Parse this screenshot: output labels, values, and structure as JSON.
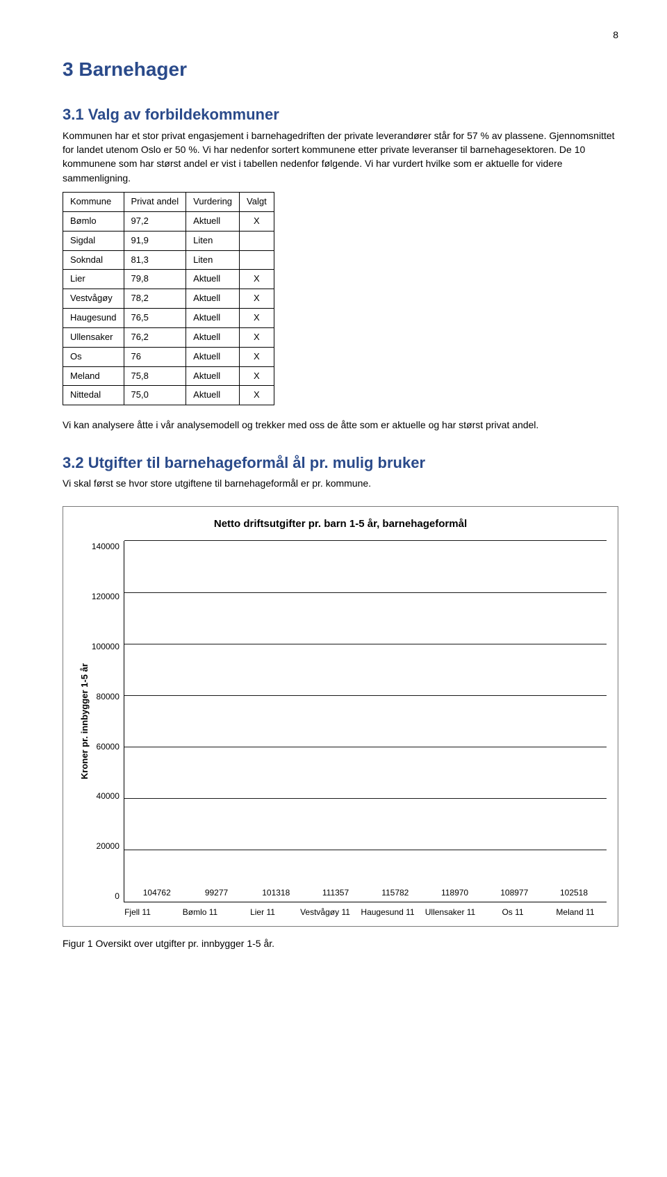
{
  "page_number": "8",
  "h1": "3  Barnehager",
  "h2_1": "3.1  Valg av forbildekommuner",
  "p1": "Kommunen har et stor privat engasjement i barnehagedriften der private leverandører står for 57 % av plassene. Gjennomsnittet for landet utenom Oslo er 50 %. Vi har nedenfor sortert kommunene etter private leveranser til barnehagesektoren. De 10 kommunene som har størst andel er vist i tabellen nedenfor følgende. Vi har vurdert hvilke som er aktuelle for videre sammenligning.",
  "table": {
    "headers": [
      "Kommune",
      "Privat andel",
      "Vurdering",
      "Valgt"
    ],
    "rows": [
      [
        "Bømlo",
        "97,2",
        "Aktuell",
        "X"
      ],
      [
        "Sigdal",
        "91,9",
        "Liten",
        ""
      ],
      [
        "Sokndal",
        "81,3",
        "Liten",
        ""
      ],
      [
        "Lier",
        "79,8",
        "Aktuell",
        "X"
      ],
      [
        "Vestvågøy",
        "78,2",
        "Aktuell",
        "X"
      ],
      [
        "Haugesund",
        "76,5",
        "Aktuell",
        "X"
      ],
      [
        "Ullensaker",
        "76,2",
        "Aktuell",
        "X"
      ],
      [
        "Os",
        "76",
        "Aktuell",
        "X"
      ],
      [
        "Meland",
        "75,8",
        "Aktuell",
        "X"
      ],
      [
        "Nittedal",
        "75,0",
        "Aktuell",
        "X"
      ]
    ]
  },
  "p2": "Vi kan analysere åtte i vår analysemodell og trekker med oss de åtte som er aktuelle og har størst privat andel.",
  "h2_2": "3.2  Utgifter til barnehageformål ål pr. mulig bruker",
  "p3": "Vi skal først se hvor store utgiftene til barnehageformål er pr. kommune.",
  "chart": {
    "type": "bar",
    "title": "Netto driftsutgifter pr. barn 1-5 år, barnehageformål",
    "ylabel": "Kroner pr. innbygger 1-5 år",
    "ylim": [
      0,
      140000
    ],
    "ytick_step": 20000,
    "yticks": [
      "140000",
      "120000",
      "100000",
      "80000",
      "60000",
      "40000",
      "20000",
      "0"
    ],
    "categories": [
      "Fjell 11",
      "Bømlo 11",
      "Lier 11",
      "Vestvågøy 11",
      "Haugesund 11",
      "Ullensaker 11",
      "Os 11",
      "Meland 11"
    ],
    "values": [
      104762,
      99277,
      101318,
      111357,
      115782,
      118970,
      108977,
      102518
    ],
    "bar_color": "#31538e",
    "grid_color": "#000000",
    "background_color": "#ffffff",
    "bar_width": 0.7,
    "label_fontsize": 12,
    "title_fontsize": 15
  },
  "fig_caption": "Figur 1 Oversikt over utgifter pr. innbygger 1-5 år."
}
